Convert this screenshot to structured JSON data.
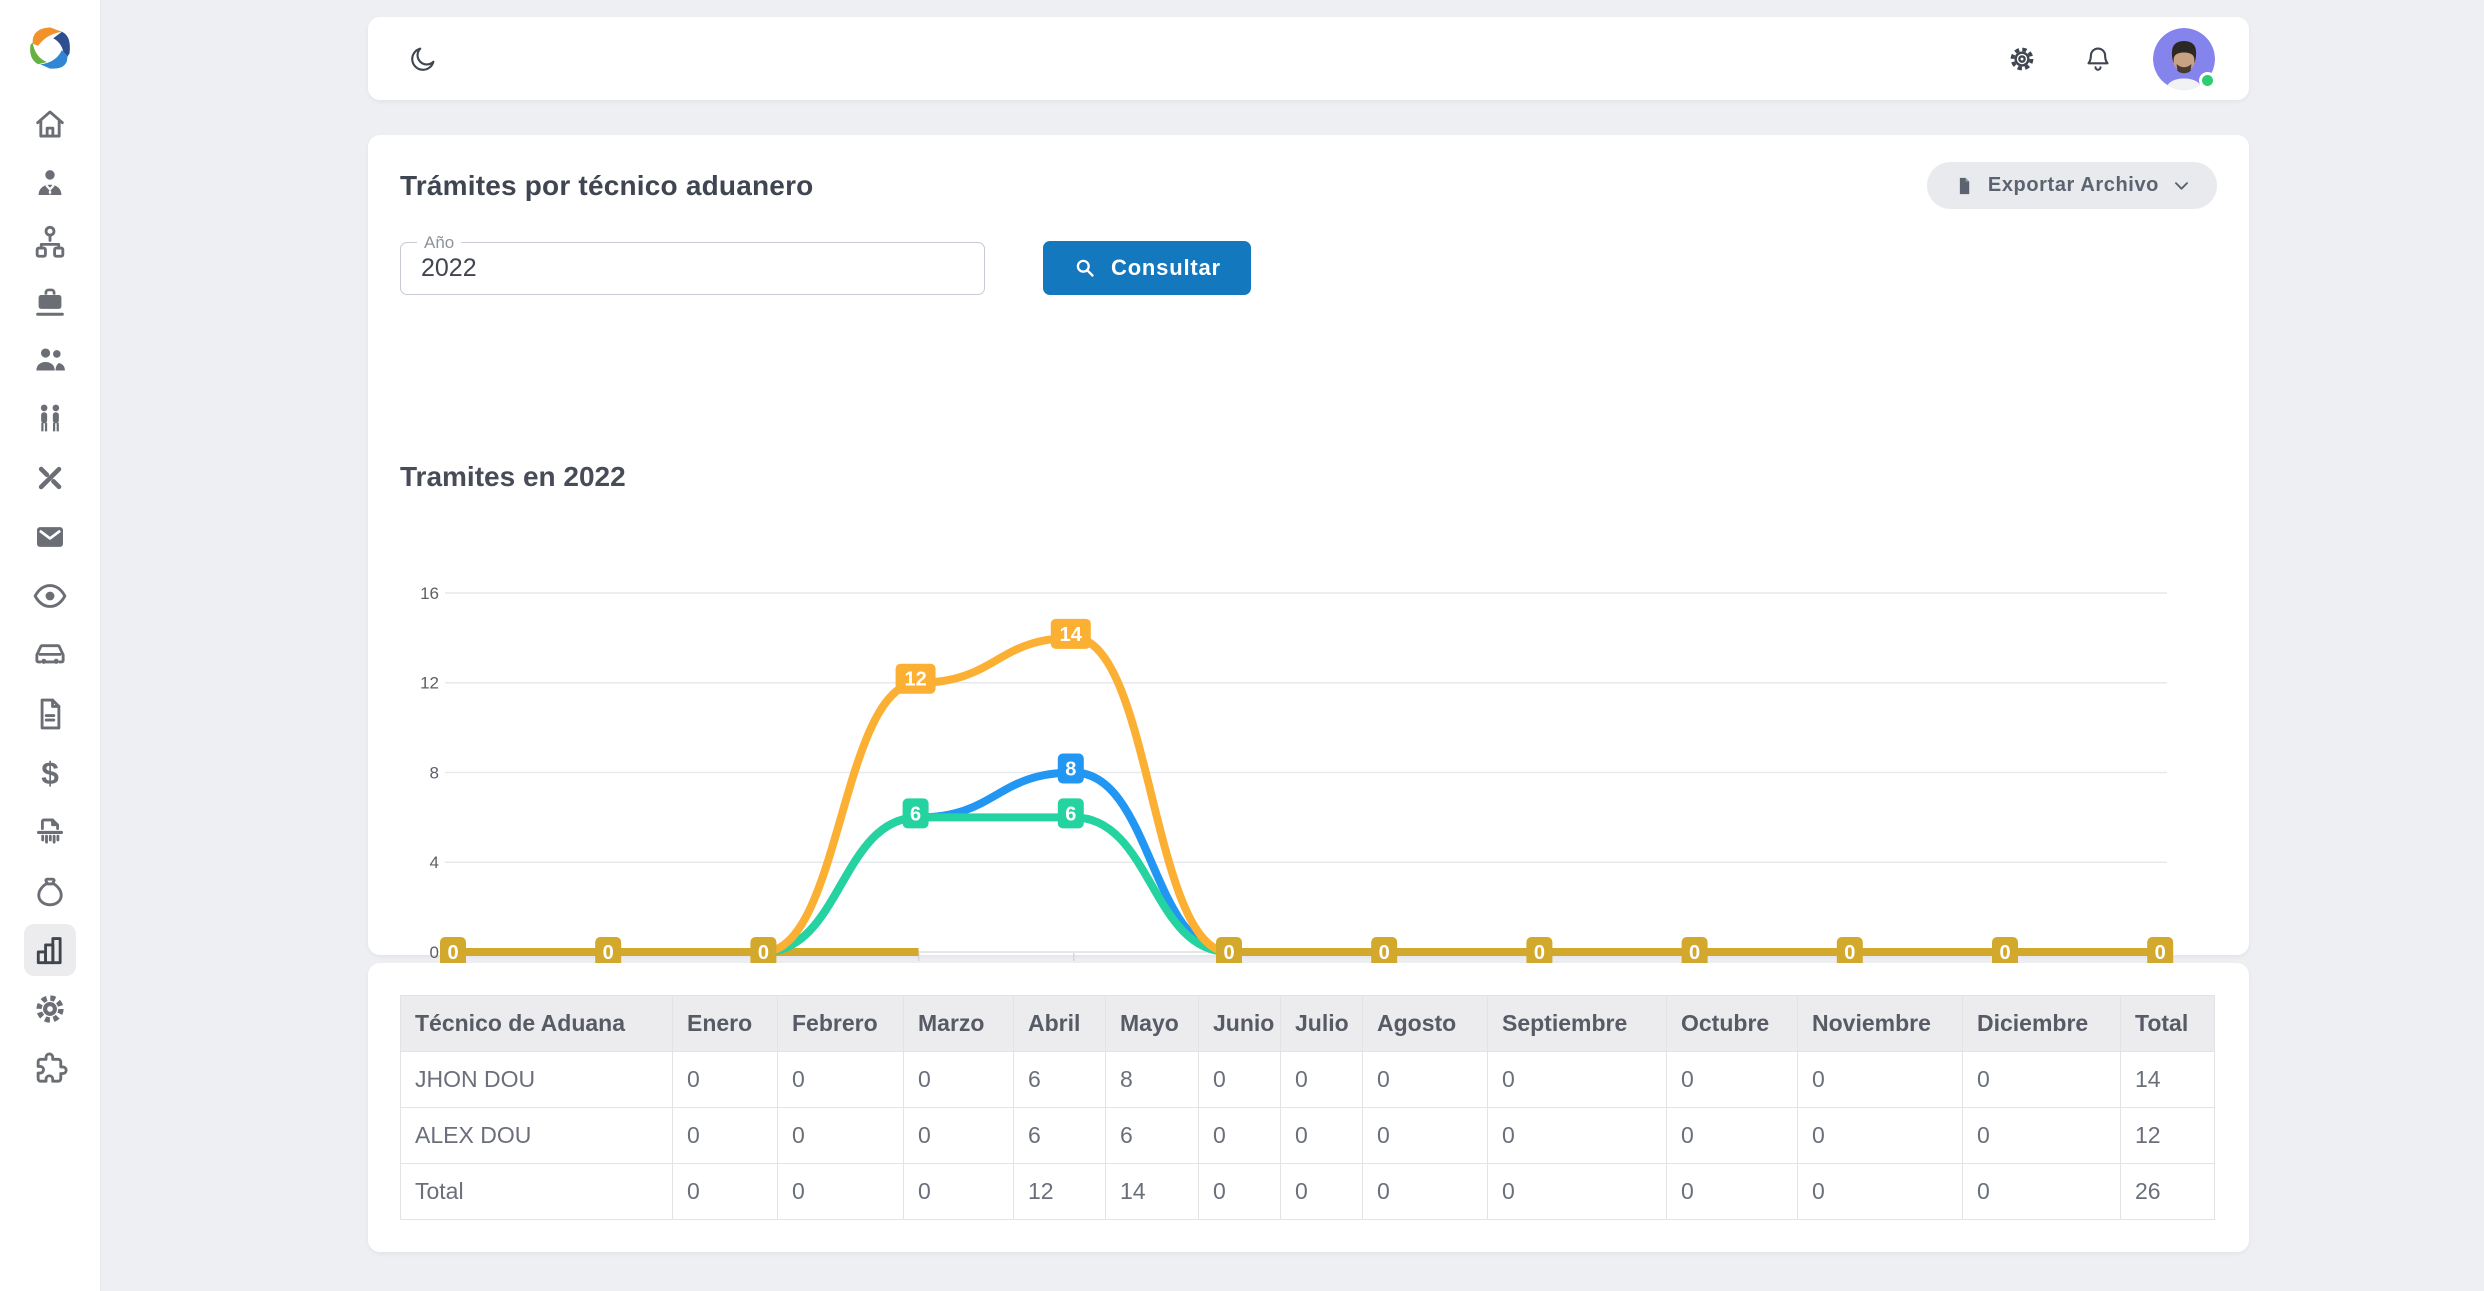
{
  "colors": {
    "accent_blue": "#1478be",
    "series_blue": "#2196f3",
    "series_green": "#25d3a0",
    "series_orange": "#fbb034",
    "baseline_yellow": "#d2a92c",
    "status_online": "#2ecc71"
  },
  "topbar": {
    "left_icons": [
      "moon"
    ],
    "right_icons": [
      "gear",
      "bell"
    ],
    "avatar": {
      "status": "online"
    }
  },
  "sidebar": {
    "items": [
      {
        "name": "home",
        "active": false
      },
      {
        "name": "person-tie",
        "active": false
      },
      {
        "name": "hierarchy",
        "active": false
      },
      {
        "name": "briefcase",
        "active": false
      },
      {
        "name": "people",
        "active": false
      },
      {
        "name": "two-people",
        "active": false
      },
      {
        "name": "design-tools",
        "active": false
      },
      {
        "name": "mail",
        "active": false
      },
      {
        "name": "eye",
        "active": false
      },
      {
        "name": "car",
        "active": false
      },
      {
        "name": "document",
        "active": false
      },
      {
        "name": "dollar",
        "active": false
      },
      {
        "name": "shredder",
        "active": false
      },
      {
        "name": "money-bag",
        "active": false
      },
      {
        "name": "bar-chart",
        "active": true
      },
      {
        "name": "settings",
        "active": false
      },
      {
        "name": "puzzle",
        "active": false
      }
    ]
  },
  "main": {
    "title": "Trámites por técnico aduanero",
    "export_button": {
      "label": "Exportar Archivo"
    },
    "year_field": {
      "label": "Año",
      "value": "2022"
    },
    "consult_button": {
      "label": "Consultar"
    },
    "chart_title": "Tramites en 2022"
  },
  "chart_data": {
    "type": "line",
    "title": "Tramites en 2022",
    "categories": [
      "Enero",
      "Febrero",
      "Marzo",
      "Abril",
      "Mayo",
      "Junio",
      "Julio",
      "Agosto",
      "Septiembre",
      "Octubre",
      "Noviembre",
      "Diciembre"
    ],
    "series": [
      {
        "name": "JHON DOU",
        "color": "#2196f3",
        "values": [
          0,
          0,
          0,
          6,
          8,
          0,
          0,
          0,
          0,
          0,
          0,
          0
        ]
      },
      {
        "name": "ALEX DOU",
        "color": "#25d3a0",
        "values": [
          0,
          0,
          0,
          6,
          6,
          0,
          0,
          0,
          0,
          0,
          0,
          0
        ]
      },
      {
        "name": "Total",
        "color": "#fbb034",
        "values": [
          0,
          0,
          0,
          12,
          14,
          0,
          0,
          0,
          0,
          0,
          0,
          0
        ]
      }
    ],
    "ylim": [
      0,
      16
    ],
    "yticks": [
      0,
      4,
      8,
      12,
      16
    ],
    "baseline_color": "#d2a92c",
    "grid": true,
    "point_labels": true,
    "legend_position": "bottom"
  },
  "table": {
    "headers": [
      "Técnico de Aduana",
      "Enero",
      "Febrero",
      "Marzo",
      "Abril",
      "Mayo",
      "Junio",
      "Julio",
      "Agosto",
      "Septiembre",
      "Octubre",
      "Noviembre",
      "Diciembre",
      "Total"
    ],
    "rows": [
      {
        "label": "JHON DOU",
        "values": [
          0,
          0,
          0,
          6,
          8,
          0,
          0,
          0,
          0,
          0,
          0,
          0,
          14
        ]
      },
      {
        "label": "ALEX DOU",
        "values": [
          0,
          0,
          0,
          6,
          6,
          0,
          0,
          0,
          0,
          0,
          0,
          0,
          12
        ]
      },
      {
        "label": "Total",
        "values": [
          0,
          0,
          0,
          12,
          14,
          0,
          0,
          0,
          0,
          0,
          0,
          0,
          26
        ]
      }
    ]
  }
}
